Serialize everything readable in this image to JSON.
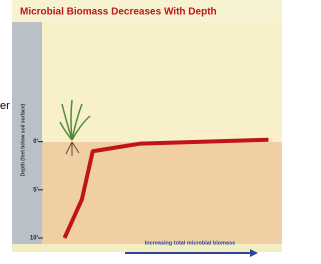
{
  "page_text": "er",
  "chart_data": {
    "type": "line",
    "title": "Microbial Biomass Decreases With Depth",
    "y_label": "Depth (feet below soil surface)",
    "x_label": "Increasing total microbial biomass",
    "x": [
      3,
      11,
      16,
      38,
      97
    ],
    "values": [
      10,
      6,
      1,
      0.2,
      -0.2
    ],
    "color": "#c0141a",
    "xlim": [
      0,
      100
    ],
    "ylim": [
      -12,
      10
    ],
    "yticks": [
      {
        "value": 0,
        "label": "0'"
      },
      {
        "value": 5,
        "label": "5'"
      },
      {
        "value": 10,
        "label": "10'"
      }
    ]
  }
}
